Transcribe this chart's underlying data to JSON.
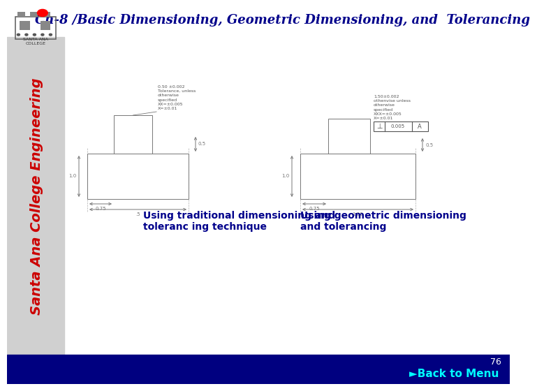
{
  "title": "Ch-8 /Basic Dimensioning, Geometric Dimensioning, and  Tolerancing",
  "title_color": "#00008B",
  "title_fontsize": 13,
  "bg_color": "#FFFFFF",
  "footer_color": "#000080",
  "footer_text": "►Back to Menu",
  "footer_text_color": "#00FFFF",
  "page_number": "76",
  "caption_left": "Using traditional dimensioning and\ntoleranc ing technique",
  "caption_right": "Using geometric dimensioning\nand tolerancing",
  "caption_color": "#00008B",
  "caption_fontsize": 10,
  "sidebar_text": "Santa Ana College Engineering",
  "sidebar_text_color": "#CC0000",
  "sidebar_bg": "#D0D0D0",
  "diagram_line_color": "#777777",
  "diagram_text_color": "#555555"
}
